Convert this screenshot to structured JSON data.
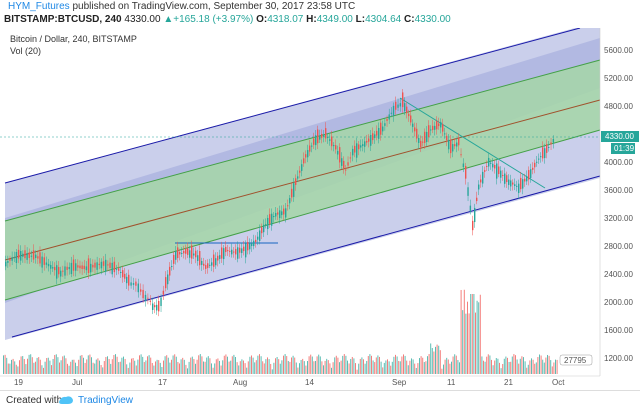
{
  "header": {
    "author": "HYM_Futures",
    "published_text": "published on TradingView.com, September 30, 2017 23:58 UTC",
    "symbol": "BITSTAMP:BTCUSD, 240",
    "last": "4330.00",
    "change": "+165.18 (+3.97%)",
    "o_label": "O:",
    "o_value": "4318.07",
    "h_label": "H:",
    "h_value": "4349.00",
    "l_label": "L:",
    "l_value": "4304.64",
    "c_label": "C:",
    "c_value": "4330.00"
  },
  "chart": {
    "legend_title": "Bitcoin / Dollar, 240, BITSTAMP",
    "legend_vol": "Vol (20)",
    "price_ticks": [
      "5600.00",
      "5200.00",
      "4800.00",
      "4400.00",
      "4000.00",
      "3600.00",
      "3200.00",
      "2800.00",
      "2400.00",
      "2000.00",
      "1600.00",
      "1200.00"
    ],
    "date_ticks": [
      "19",
      "Jul",
      "17",
      "Aug",
      "14",
      "Sep",
      "11",
      "21",
      "Oct"
    ],
    "price_tag": "4330.00",
    "time_tag": "01:39",
    "volume_tag": "27795",
    "colors": {
      "outer_channel": "#9fa8da",
      "inner_channel": "#a5d6a7",
      "mid_line": "#a0522d",
      "up_candle": "#26a69a",
      "down_candle": "#ef5350",
      "outer_line": "#1a1aa8",
      "inner_line": "#43a047"
    }
  },
  "footer": {
    "created_with": "Created with",
    "brand": "TradingView"
  }
}
